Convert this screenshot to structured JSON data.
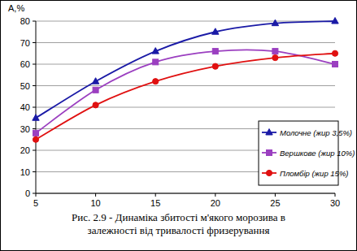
{
  "chart_data": {
    "type": "line",
    "title": "Рис. 2.9 - Динаміка збитості м'якого морозива в залежності від тривалості фризерування",
    "y_label": "А,%",
    "x": [
      5,
      10,
      15,
      20,
      25,
      30
    ],
    "series": [
      {
        "name": "Молочне (жир 3,5%)",
        "color": "#1a1aa6",
        "marker": "triangle",
        "values": [
          35,
          52,
          66,
          75,
          79,
          80
        ]
      },
      {
        "name": "Вершкове (жир 10%)",
        "color": "#9b3fc0",
        "marker": "square",
        "values": [
          28,
          48,
          61,
          66,
          66,
          60
        ]
      },
      {
        "name": "Пломбір (жир 15%)",
        "color": "#e01010",
        "marker": "circle",
        "values": [
          25,
          41,
          52,
          59,
          63,
          65
        ]
      }
    ],
    "xlim": [
      5,
      30
    ],
    "xticks": [
      5,
      10,
      15,
      20,
      25,
      30
    ],
    "ylim": [
      0,
      80
    ],
    "yticks": [
      0,
      10,
      20,
      30,
      40,
      50,
      60,
      70,
      80
    ],
    "grid": true,
    "legend": "lower right"
  }
}
